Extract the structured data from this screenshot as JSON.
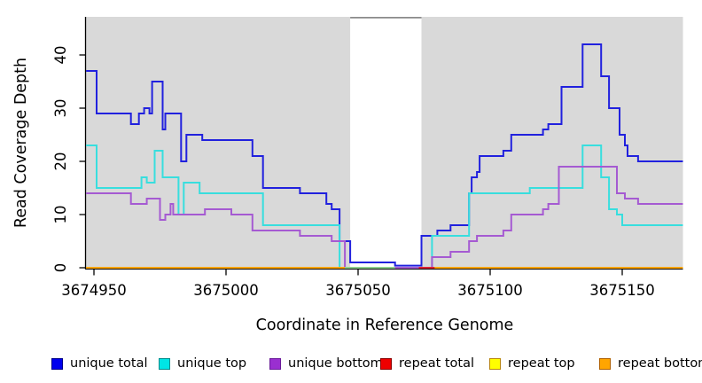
{
  "chart_data": {
    "type": "line",
    "subtype": "step",
    "title": "",
    "xlabel": "Coordinate in Reference Genome",
    "ylabel": "Read Coverage Depth",
    "xlim": [
      3674947,
      3675173
    ],
    "ylim": [
      0,
      47
    ],
    "x_ticks": [
      3674950,
      3675000,
      3675050,
      3675100,
      3675150
    ],
    "y_ticks": [
      0,
      10,
      20,
      30,
      40
    ],
    "grid": false,
    "plot_background": "#d9d9d9",
    "mask_region": {
      "from": 3675047,
      "to": 3675074,
      "fill": "#ffffff",
      "top_border": "#8a8a8a"
    },
    "series": [
      {
        "name": "unique total",
        "color": "#2121de",
        "steps": [
          [
            3674947,
            37
          ],
          [
            3674951,
            29
          ],
          [
            3674964,
            27
          ],
          [
            3674967,
            29
          ],
          [
            3674969,
            30
          ],
          [
            3674971,
            29
          ],
          [
            3674972,
            35
          ],
          [
            3674976,
            26
          ],
          [
            3674977,
            29
          ],
          [
            3674983,
            20
          ],
          [
            3674985,
            25
          ],
          [
            3674991,
            24
          ],
          [
            3675010,
            21
          ],
          [
            3675014,
            15
          ],
          [
            3675028,
            14
          ],
          [
            3675038,
            12
          ],
          [
            3675040,
            11
          ],
          [
            3675043,
            5
          ],
          [
            3675047,
            1
          ],
          [
            3675064,
            0.4
          ],
          [
            3675074,
            6
          ],
          [
            3675080,
            7
          ],
          [
            3675085,
            8
          ],
          [
            3675092,
            14
          ],
          [
            3675093,
            17
          ],
          [
            3675095,
            18
          ],
          [
            3675096,
            21
          ],
          [
            3675105,
            22
          ],
          [
            3675108,
            25
          ],
          [
            3675120,
            26
          ],
          [
            3675122,
            27
          ],
          [
            3675127,
            34
          ],
          [
            3675135,
            42
          ],
          [
            3675142,
            36
          ],
          [
            3675145,
            30
          ],
          [
            3675149,
            25
          ],
          [
            3675151,
            23
          ],
          [
            3675152,
            21
          ],
          [
            3675156,
            20
          ]
        ]
      },
      {
        "name": "unique top",
        "color": "#38dede",
        "steps": [
          [
            3674947,
            23
          ],
          [
            3674951,
            15
          ],
          [
            3674968,
            17
          ],
          [
            3674970,
            16
          ],
          [
            3674973,
            22
          ],
          [
            3674976,
            17
          ],
          [
            3674982,
            10
          ],
          [
            3674984,
            16
          ],
          [
            3674990,
            14
          ],
          [
            3675014,
            8
          ],
          [
            3675043,
            0
          ],
          [
            3675078,
            6
          ],
          [
            3675092,
            14
          ],
          [
            3675115,
            15
          ],
          [
            3675135,
            23
          ],
          [
            3675142,
            17
          ],
          [
            3675145,
            11
          ],
          [
            3675148,
            10
          ],
          [
            3675150,
            8
          ]
        ]
      },
      {
        "name": "unique bottom",
        "color": "#a55ad2",
        "steps": [
          [
            3674947,
            14
          ],
          [
            3674964,
            12
          ],
          [
            3674970,
            13
          ],
          [
            3674975,
            9
          ],
          [
            3674977,
            10
          ],
          [
            3674979,
            12
          ],
          [
            3674980,
            10
          ],
          [
            3674992,
            11
          ],
          [
            3675002,
            10
          ],
          [
            3675010,
            7
          ],
          [
            3675028,
            6
          ],
          [
            3675040,
            5
          ],
          [
            3675045,
            0
          ],
          [
            3675078,
            2
          ],
          [
            3675085,
            3
          ],
          [
            3675092,
            5
          ],
          [
            3675095,
            6
          ],
          [
            3675105,
            7
          ],
          [
            3675108,
            10
          ],
          [
            3675120,
            11
          ],
          [
            3675122,
            12
          ],
          [
            3675126,
            19
          ],
          [
            3675148,
            14
          ],
          [
            3675151,
            13
          ],
          [
            3675156,
            12
          ]
        ]
      },
      {
        "name": "repeat total",
        "color": "#dd2233",
        "value": 0,
        "visible_from": 3675073,
        "visible_to": 3675079
      },
      {
        "name": "repeat top",
        "color": "#ffff00",
        "value": 0,
        "note_blend_with_unique_top": "#8fd08f",
        "visible_from": 3675045,
        "visible_to": 3675064
      },
      {
        "name": "repeat bottom",
        "color": "#ffa500",
        "value": 0,
        "visible_from": 3674947,
        "visible_to": 3675173
      }
    ],
    "baseline_segments": [
      {
        "name": "repeat-bottom-left",
        "color": "#ffa500",
        "from": 3674947,
        "to": 3675045
      },
      {
        "name": "repeat-top-blend",
        "color": "#8fd08f",
        "from": 3675045,
        "to": 3675064
      },
      {
        "name": "repeat-total-visible",
        "color": "#dd2233",
        "from": 3675073,
        "to": 3675079
      },
      {
        "name": "repeat-bottom-right",
        "color": "#ffa500",
        "from": 3675079,
        "to": 3675173
      }
    ],
    "legend_position": "bottom"
  },
  "axes": {
    "x_title": "Coordinate in Reference Genome",
    "y_title": "Read Coverage Depth",
    "x_tick_labels": [
      "3674950",
      "3675000",
      "3675050",
      "3675100",
      "3675150"
    ],
    "y_tick_labels": [
      "0",
      "10",
      "20",
      "30",
      "40"
    ]
  },
  "legend": {
    "items": [
      {
        "label": "unique total",
        "fill": "#0000ee",
        "border": "#000088"
      },
      {
        "label": "unique top",
        "fill": "#00e5e5",
        "border": "#008b8b"
      },
      {
        "label": "unique bottom",
        "fill": "#9a2fd0",
        "border": "#6a1b9a"
      },
      {
        "label": "repeat total",
        "fill": "#ee0000",
        "border": "#880000"
      },
      {
        "label": "repeat top",
        "fill": "#ffff00",
        "border": "#b8860b"
      },
      {
        "label": "repeat bottom",
        "fill": "#ffa500",
        "border": "#b06000"
      }
    ]
  }
}
